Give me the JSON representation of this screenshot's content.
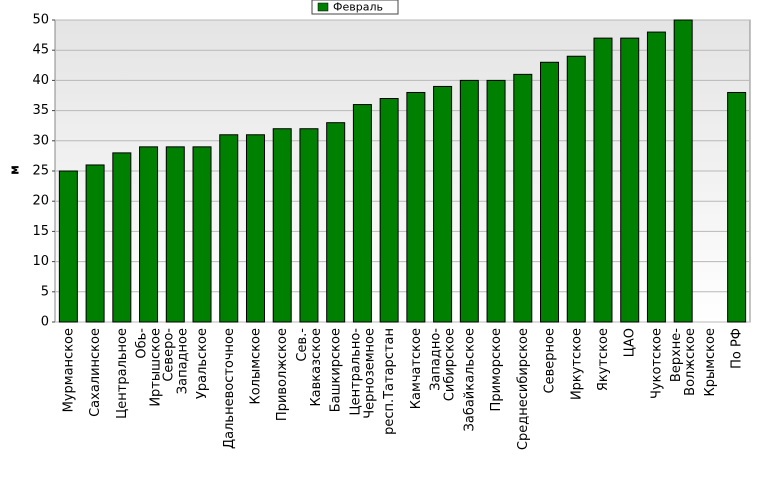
{
  "chart_data": {
    "type": "bar",
    "y_label": "м",
    "legend": "top",
    "series": [
      {
        "name": "Февраль",
        "color": "#008000",
        "values": [
          25,
          26,
          28,
          29,
          29,
          29,
          31,
          31,
          32,
          32,
          33,
          36,
          37,
          38,
          39,
          40,
          40,
          41,
          43,
          44,
          47,
          47,
          48,
          50,
          null,
          38
        ]
      }
    ],
    "categories": [
      "Мурманское",
      "Сахалинское",
      "Центральное",
      "Обь-Иртышское",
      "Северо-Западное",
      "Уральское",
      "Дальневосточное",
      "Колымское",
      "Приволжское",
      "Сев.-Кавказское",
      "Башкирское",
      "Центрально-Черноземное",
      "респ.Татарстан",
      "Камчатское",
      "Западно-Сибирское",
      "Забайкальское",
      "Приморское",
      "Среднесибирское",
      "Северное",
      "Иркутское",
      "Якутское",
      "ЦАО",
      "Чукотское",
      "Верхне-Волжское",
      "Крымское",
      "По РФ"
    ],
    "ylim": [
      0,
      50
    ],
    "yticks": [
      0,
      5,
      10,
      15,
      20,
      25,
      30,
      35,
      40,
      45,
      50
    ],
    "grid": true
  }
}
